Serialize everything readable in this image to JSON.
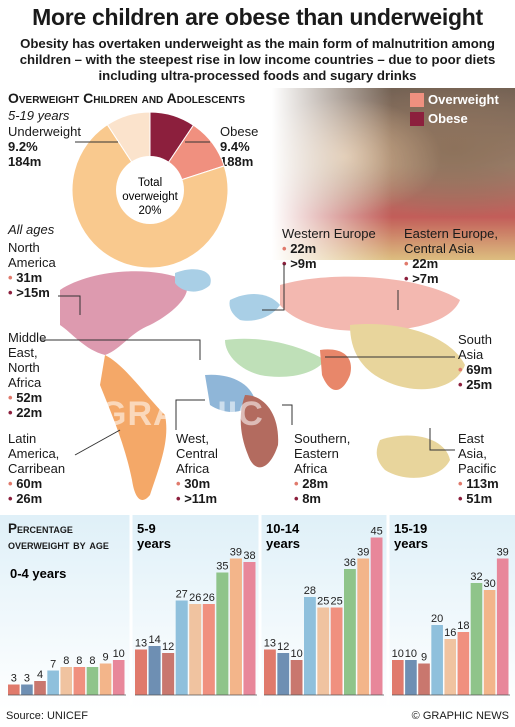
{
  "header": {
    "title": "More children are obese than underweight",
    "subtitle": "Obesity has overtaken underweight as the main form of malnutrition among children – with the steepest rise in low income countries – due to poor diets including ultra-processed foods and sugary drinks"
  },
  "colors": {
    "overweight": "#f0907f",
    "obese": "#8c1f3d",
    "underweight": "#fbe3cc",
    "rest": "#f9c98e"
  },
  "legend": {
    "overweight": "Overweight",
    "obese": "Obese"
  },
  "donut": {
    "section_title": "Overweight Children and Adolescents",
    "age_range": "5-19 years",
    "underweight_label": "Underweight",
    "underweight_pct": "9.2%",
    "underweight_num": "184m",
    "obese_label": "Obese",
    "obese_pct": "9.4%",
    "obese_num": "188m",
    "center_line1": "Total",
    "center_line2": "overweight",
    "center_line3": "20%"
  },
  "map": {
    "all_ages": "All ages",
    "watermark": "GRAPHIC NEWS",
    "regions": [
      {
        "name": "North America",
        "overweight": "31m",
        "obese": ">15m"
      },
      {
        "name": "Western Europe",
        "overweight": "22m",
        "obese": ">9m"
      },
      {
        "name": "Eastern Europe, Central Asia",
        "overweight": "22m",
        "obese": ">7m"
      },
      {
        "name": "Middle East, North Africa",
        "overweight": "52m",
        "obese": "22m"
      },
      {
        "name": "South Asia",
        "overweight": "69m",
        "obese": "25m"
      },
      {
        "name": "Latin America, Carribean",
        "overweight": "60m",
        "obese": "26m"
      },
      {
        "name": "West, Central Africa",
        "overweight": "30m",
        "obese": ">11m"
      },
      {
        "name": "Southern, Eastern Africa",
        "overweight": "28m",
        "obese": "8m"
      },
      {
        "name": "East Asia, Pacific",
        "overweight": "113m",
        "obese": "51m"
      }
    ]
  },
  "chart_data": {
    "type": "bar",
    "title": "Percentage overweight by age",
    "bar_colors": [
      "#e07a6c",
      "#6e8fb3",
      "#c9776e",
      "#8fc0dc",
      "#f0c3a0",
      "#f0907f",
      "#8fc48a",
      "#f3b58a",
      "#e8879a"
    ],
    "panels": [
      {
        "age": "0-4 years",
        "values": [
          3,
          3,
          4,
          7,
          8,
          8,
          8,
          9,
          10
        ]
      },
      {
        "age": "5-9 years",
        "values": [
          13,
          14,
          12,
          27,
          26,
          26,
          35,
          39,
          38
        ]
      },
      {
        "age": "10-14 years",
        "values": [
          13,
          12,
          10,
          28,
          25,
          25,
          36,
          39,
          45
        ]
      },
      {
        "age": "15-19 years",
        "values": [
          10,
          10,
          9,
          20,
          16,
          18,
          32,
          30,
          39
        ]
      }
    ]
  },
  "footer": {
    "source": "Source: UNICEF",
    "credit": "© GRAPHIC NEWS"
  }
}
